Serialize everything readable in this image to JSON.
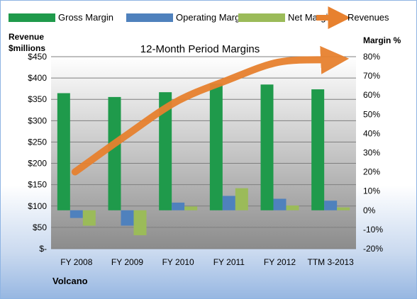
{
  "chart_data": {
    "type": "bar",
    "title": "12-Month Period Margins",
    "company": "Volcano",
    "ylabel_left": [
      "Revenue",
      "$millions"
    ],
    "ylabel_right": "Margin %",
    "ylim_left": [
      0,
      450
    ],
    "ylim_right": [
      -20,
      80
    ],
    "left_ticks": [
      {
        "v": 450,
        "label": "$450"
      },
      {
        "v": 400,
        "label": "$400"
      },
      {
        "v": 350,
        "label": "$350"
      },
      {
        "v": 300,
        "label": "$300"
      },
      {
        "v": 250,
        "label": "$250"
      },
      {
        "v": 200,
        "label": "$200"
      },
      {
        "v": 150,
        "label": "$150"
      },
      {
        "v": 100,
        "label": "$100"
      },
      {
        "v": 50,
        "label": "$50"
      },
      {
        "v": 0,
        "label": "$-"
      }
    ],
    "right_ticks": [
      {
        "v": 80,
        "label": "80%"
      },
      {
        "v": 70,
        "label": "70%"
      },
      {
        "v": 60,
        "label": "60%"
      },
      {
        "v": 50,
        "label": "50%"
      },
      {
        "v": 40,
        "label": "40%"
      },
      {
        "v": 30,
        "label": "30%"
      },
      {
        "v": 20,
        "label": "20%"
      },
      {
        "v": 10,
        "label": "10%"
      },
      {
        "v": 0,
        "label": "0%"
      },
      {
        "v": -10,
        "label": "-10%"
      },
      {
        "v": -20,
        "label": "-20%"
      }
    ],
    "categories": [
      "FY 2008",
      "FY 2009",
      "FY 2010",
      "FY 2011",
      "FY 2012",
      "TTM 3-2013"
    ],
    "series": [
      {
        "name": "Gross Margin",
        "type": "bar",
        "axis": "right",
        "color": "#1f9a4b",
        "values": [
          61,
          59,
          61.5,
          66,
          65.5,
          63
        ]
      },
      {
        "name": "Operating Margin",
        "type": "bar",
        "axis": "right",
        "color": "#4f81bd",
        "values": [
          -4,
          -8,
          4,
          7.5,
          6,
          5
        ]
      },
      {
        "name": "Net Margin",
        "type": "bar",
        "axis": "right",
        "color": "#9bbb59",
        "values": [
          -8,
          -13,
          2,
          11.5,
          2.5,
          1.5
        ]
      },
      {
        "name": "Revenues",
        "type": "line",
        "axis": "left",
        "color": "#e7812f",
        "values": [
          180,
          265,
          345,
          395,
          437,
          443
        ]
      }
    ],
    "legend_position": "top",
    "grid": true
  }
}
